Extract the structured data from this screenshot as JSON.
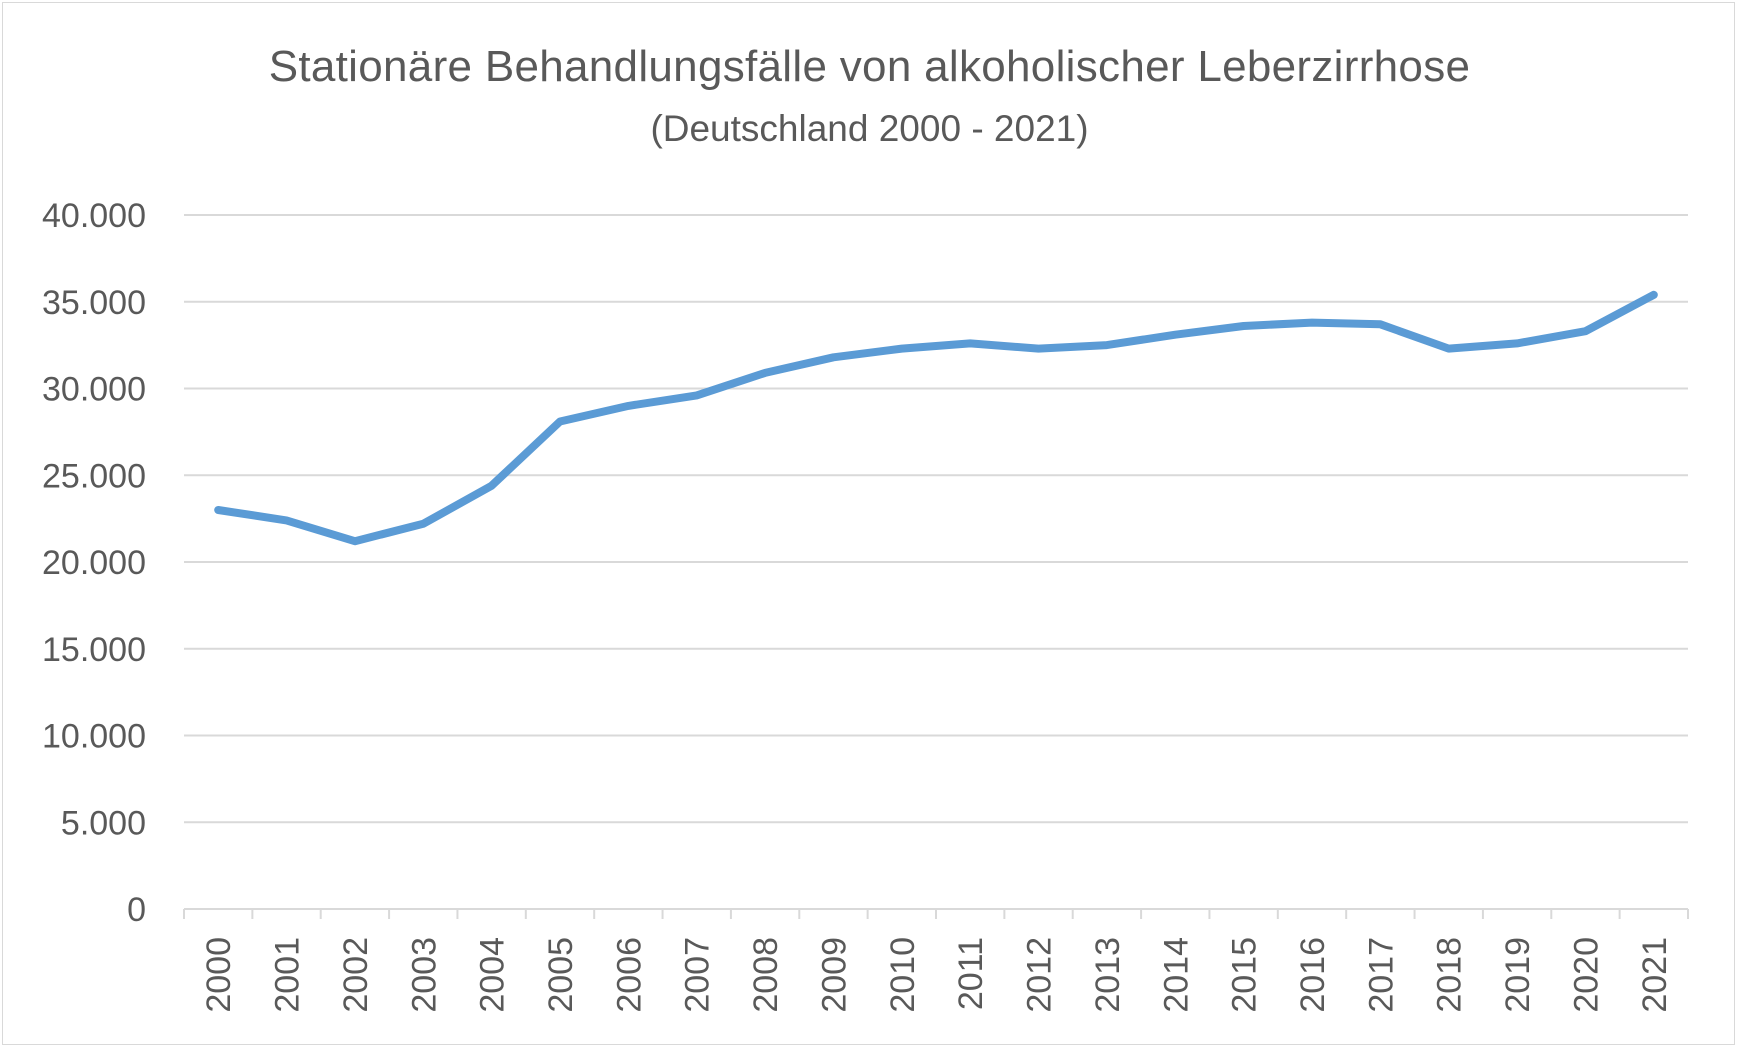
{
  "chart_data": {
    "type": "line",
    "title": "Stationäre Behandlungsfälle von alkoholischer Leberzirrhose",
    "subtitle": "(Deutschland 2000 - 2021)",
    "categories": [
      "2000",
      "2001",
      "2002",
      "2003",
      "2004",
      "2005",
      "2006",
      "2007",
      "2008",
      "2009",
      "2010",
      "2011",
      "2012",
      "2013",
      "2014",
      "2015",
      "2016",
      "2017",
      "2018",
      "2019",
      "2020",
      "2021"
    ],
    "series": [
      {
        "values": [
          23000,
          22400,
          21200,
          22200,
          24400,
          28100,
          29000,
          29600,
          30900,
          31800,
          32300,
          32600,
          32300,
          32500,
          33100,
          33600,
          33800,
          33700,
          32300,
          32600,
          33300,
          35400
        ],
        "color": "#5b9bd5"
      }
    ],
    "ylim": [
      0,
      40000
    ],
    "yticks": [
      0,
      5000,
      10000,
      15000,
      20000,
      25000,
      30000,
      35000,
      40000
    ],
    "ytick_labels": [
      "0",
      "5.000",
      "10.000",
      "15.000",
      "20.000",
      "25.000",
      "30.000",
      "35.000",
      "40.000"
    ],
    "grid": true,
    "legend": "none"
  }
}
